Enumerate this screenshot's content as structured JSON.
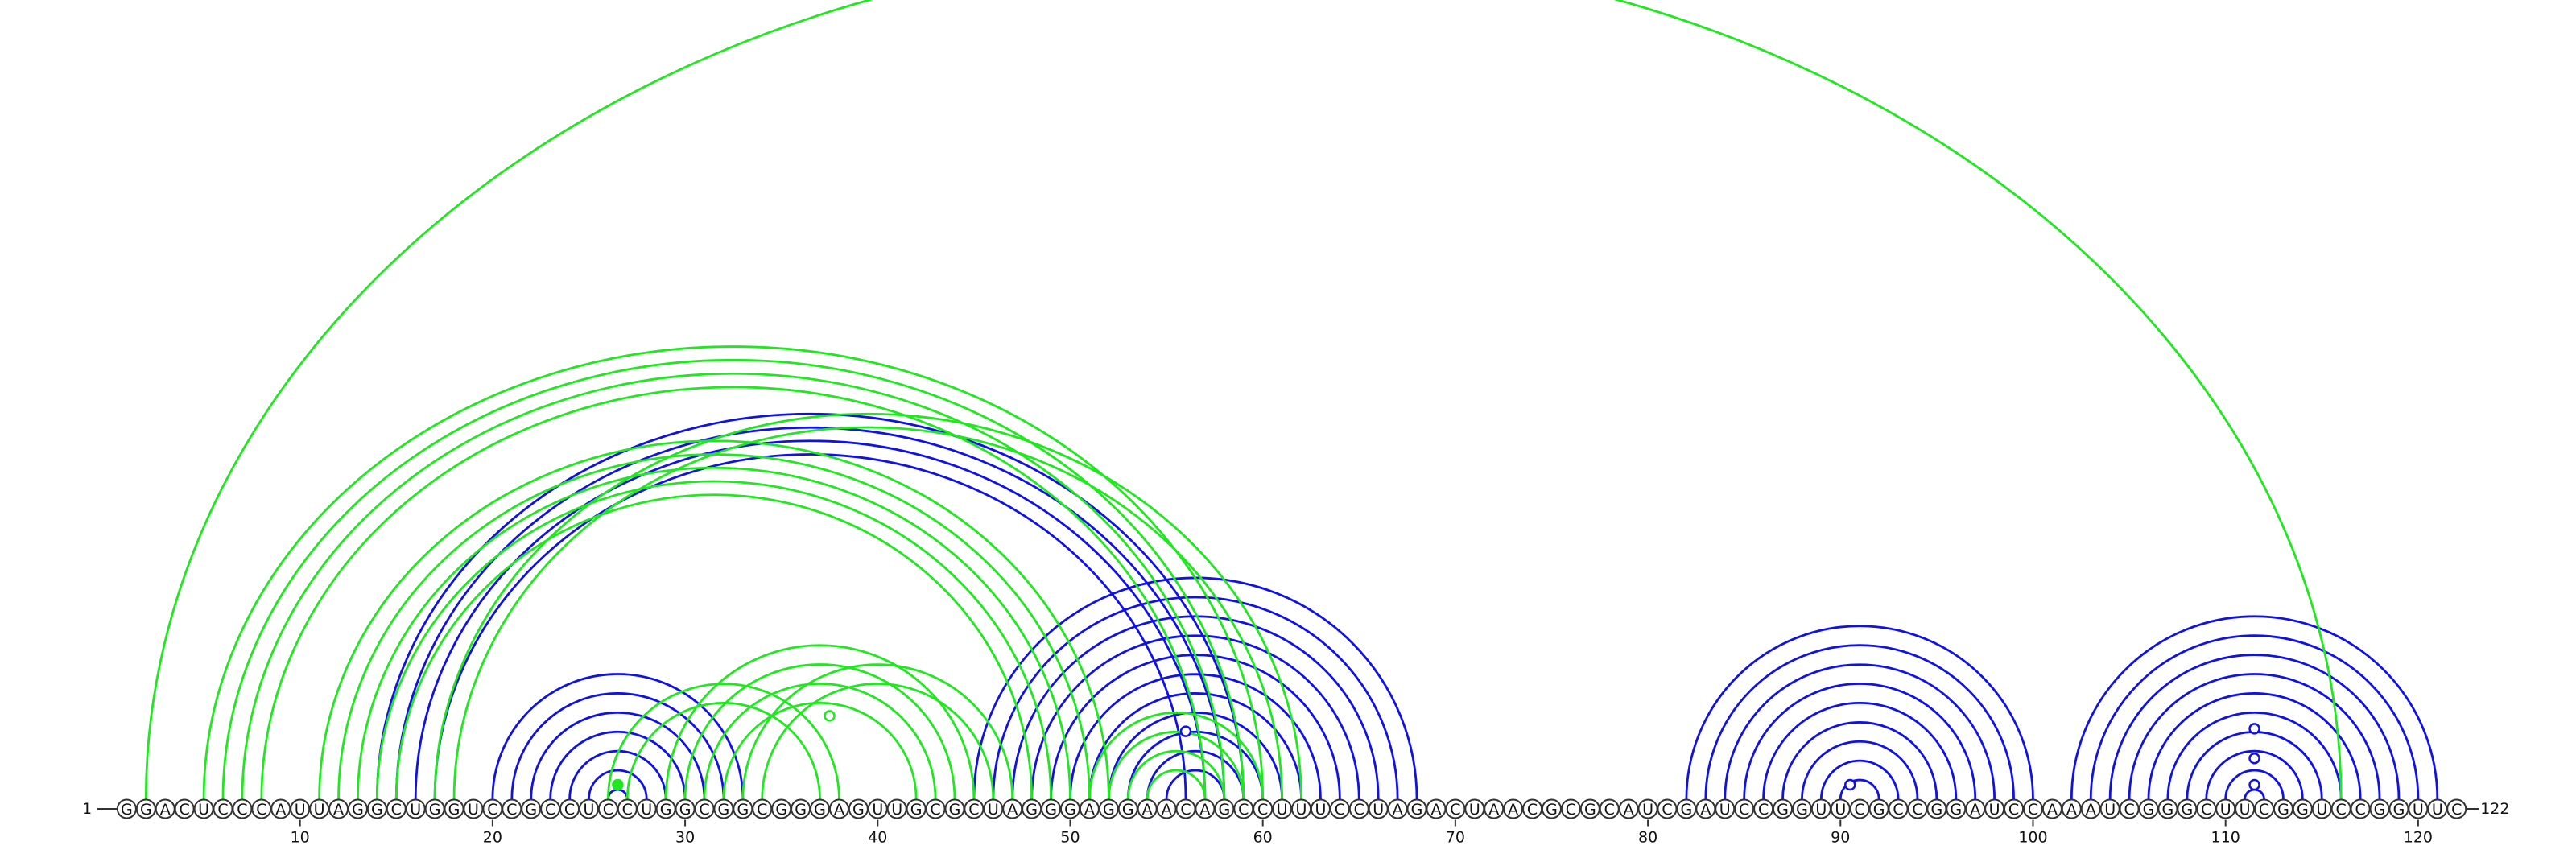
{
  "sequence": "GGACUCCCAUUAGGCUGGUCCGCCUCCUGGCGGCGGGAGUUGCGCUAGGGAGGAACAGCCUUUCCUAGACUAACGCGCAUCGAUCCGGUUCGCCGGAUCCAAAUCGGGCUUCGGUCCGGUUC",
  "start_label": "1",
  "end_label": "122",
  "ticks": [
    "10",
    "20",
    "30",
    "40",
    "50",
    "60",
    "70",
    "80",
    "90",
    "100",
    "110",
    "120"
  ],
  "colors": {
    "blue": "#1010e8",
    "green": "#1fe81f",
    "outline": "#333333"
  },
  "blue_arcs": [
    [
      20,
      33
    ],
    [
      21,
      32
    ],
    [
      22,
      31
    ],
    [
      23,
      30
    ],
    [
      24,
      29
    ],
    [
      25,
      28
    ],
    [
      26,
      27
    ],
    [
      14,
      59
    ],
    [
      15,
      58
    ],
    [
      16,
      57
    ],
    [
      17,
      56
    ],
    [
      45,
      68
    ],
    [
      46,
      67
    ],
    [
      47,
      66
    ],
    [
      48,
      65
    ],
    [
      49,
      64
    ],
    [
      50,
      63
    ],
    [
      51,
      62
    ],
    [
      52,
      61
    ],
    [
      53,
      60
    ],
    [
      54,
      59
    ],
    [
      55,
      58
    ],
    [
      82,
      100
    ],
    [
      83,
      99
    ],
    [
      84,
      98
    ],
    [
      85,
      97
    ],
    [
      86,
      96
    ],
    [
      87,
      95
    ],
    [
      88,
      94
    ],
    [
      89,
      93
    ],
    [
      90,
      92
    ],
    [
      102,
      121
    ],
    [
      103,
      120
    ],
    [
      104,
      119
    ],
    [
      105,
      118
    ],
    [
      106,
      117
    ],
    [
      107,
      116
    ],
    [
      108,
      115
    ],
    [
      109,
      114
    ],
    [
      110,
      113
    ],
    [
      111,
      112
    ]
  ],
  "green_arcs": [
    [
      2,
      116
    ],
    [
      5,
      60
    ],
    [
      6,
      59
    ],
    [
      7,
      58
    ],
    [
      8,
      57
    ],
    [
      11,
      52
    ],
    [
      12,
      51
    ],
    [
      13,
      50
    ],
    [
      14,
      49
    ],
    [
      15,
      48
    ],
    [
      17,
      62
    ],
    [
      18,
      61
    ],
    [
      26,
      38
    ],
    [
      27,
      37
    ],
    [
      29,
      45
    ],
    [
      30,
      44
    ],
    [
      31,
      43
    ],
    [
      32,
      42
    ],
    [
      33,
      47
    ],
    [
      34,
      46
    ],
    [
      51,
      60
    ],
    [
      52,
      59
    ],
    [
      53,
      58
    ],
    [
      54,
      57
    ]
  ],
  "markers": [
    {
      "pos": 26.5,
      "level": 0.25,
      "fill": "green",
      "outline": "green"
    },
    {
      "pos": 37.5,
      "level": 5.6,
      "fill": "white",
      "outline": "green"
    },
    {
      "pos": 56,
      "level": 4.4,
      "fill": "white",
      "outline": "blue"
    },
    {
      "pos": 90.5,
      "level": 0.25,
      "fill": "white",
      "outline": "blue"
    },
    {
      "pos": 111.5,
      "level": 0.25,
      "fill": "white",
      "outline": "blue"
    },
    {
      "pos": 111.5,
      "level": 2.3,
      "fill": "white",
      "outline": "blue"
    },
    {
      "pos": 111.5,
      "level": 4.6,
      "fill": "white",
      "outline": "blue"
    }
  ]
}
